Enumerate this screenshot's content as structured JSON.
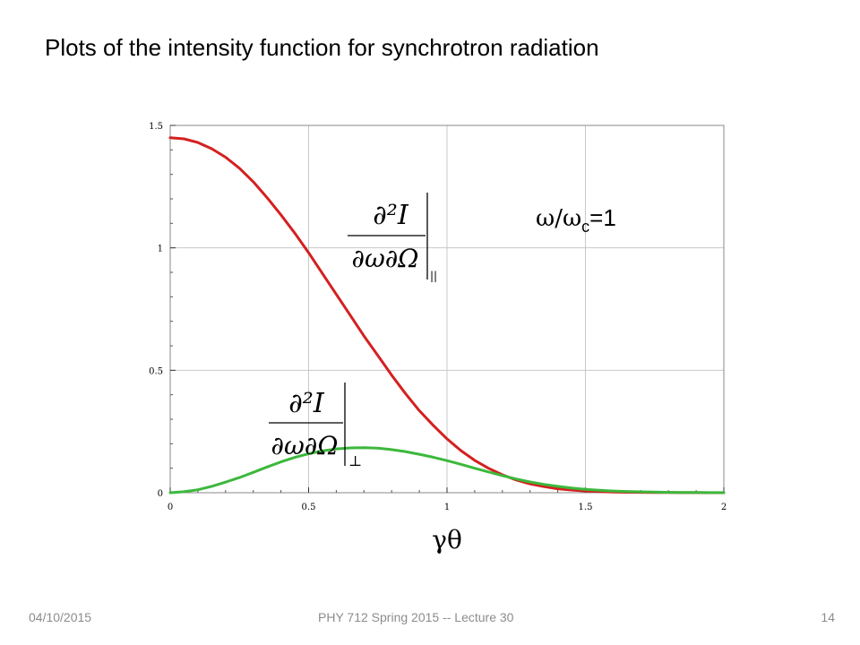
{
  "slide": {
    "title": "Plots of the intensity function for synchrotron radiation"
  },
  "footer": {
    "date": "04/10/2015",
    "course": "PHY 712  Spring 2015 -- Lecture 30",
    "page": "14"
  },
  "chart_data": {
    "type": "line",
    "title": "",
    "xlabel": "γθ",
    "ylabel": "",
    "xlim": [
      0,
      2
    ],
    "ylim": [
      0,
      1.5
    ],
    "xticks": [
      0,
      0.5,
      1,
      1.5,
      2
    ],
    "xtick_labels": [
      "0",
      "0.5",
      "1",
      "1.5",
      "2"
    ],
    "yticks": [
      0,
      0.5,
      1,
      1.5
    ],
    "ytick_labels": [
      "0",
      "0.5",
      "1",
      "1.5"
    ],
    "grid": true,
    "annotation": {
      "omega": "ω",
      "slash": "/",
      "omega_c": "ω",
      "sub": "c",
      "eq": "=1"
    },
    "labels": {
      "parallel": {
        "numerator": "∂²I",
        "denominator": "∂ω∂Ω",
        "subscript": "||"
      },
      "perp": {
        "numerator": "∂²I",
        "denominator": "∂ω∂Ω",
        "subscript": "⊥"
      }
    },
    "series": [
      {
        "color": "#d42020",
        "x": [
          0,
          0.05,
          0.1,
          0.15,
          0.2,
          0.25,
          0.3,
          0.35,
          0.4,
          0.45,
          0.5,
          0.55,
          0.6,
          0.65,
          0.7,
          0.75,
          0.8,
          0.85,
          0.9,
          0.95,
          1.0,
          1.05,
          1.1,
          1.15,
          1.2,
          1.25,
          1.3,
          1.35,
          1.4,
          1.45,
          1.5,
          1.55,
          1.6,
          1.65,
          1.7,
          1.75,
          1.8,
          1.85,
          1.9,
          1.95,
          2.0
        ],
        "values": [
          1.45,
          1.445,
          1.43,
          1.405,
          1.37,
          1.325,
          1.27,
          1.205,
          1.135,
          1.06,
          0.98,
          0.895,
          0.81,
          0.725,
          0.64,
          0.56,
          0.48,
          0.405,
          0.335,
          0.275,
          0.22,
          0.172,
          0.132,
          0.1,
          0.073,
          0.052,
          0.036,
          0.025,
          0.016,
          0.011,
          0.007,
          0.005,
          0.003,
          0.002,
          0.0015,
          0.001,
          0.0006,
          0.0004,
          0.0002,
          0.0001,
          0.0
        ]
      },
      {
        "color": "#3cb83c",
        "x": [
          0,
          0.05,
          0.1,
          0.15,
          0.2,
          0.25,
          0.3,
          0.35,
          0.4,
          0.45,
          0.5,
          0.55,
          0.6,
          0.65,
          0.7,
          0.75,
          0.8,
          0.85,
          0.9,
          0.95,
          1.0,
          1.05,
          1.1,
          1.15,
          1.2,
          1.25,
          1.3,
          1.35,
          1.4,
          1.45,
          1.5,
          1.55,
          1.6,
          1.65,
          1.7,
          1.75,
          1.8,
          1.85,
          1.9,
          1.95,
          2.0
        ],
        "values": [
          0.0,
          0.004,
          0.012,
          0.026,
          0.043,
          0.062,
          0.083,
          0.105,
          0.126,
          0.144,
          0.159,
          0.171,
          0.179,
          0.183,
          0.184,
          0.182,
          0.176,
          0.168,
          0.157,
          0.145,
          0.131,
          0.116,
          0.1,
          0.085,
          0.07,
          0.056,
          0.044,
          0.034,
          0.026,
          0.019,
          0.014,
          0.01,
          0.007,
          0.005,
          0.0035,
          0.0024,
          0.0016,
          0.001,
          0.0007,
          0.0004,
          0.0002
        ]
      }
    ]
  }
}
